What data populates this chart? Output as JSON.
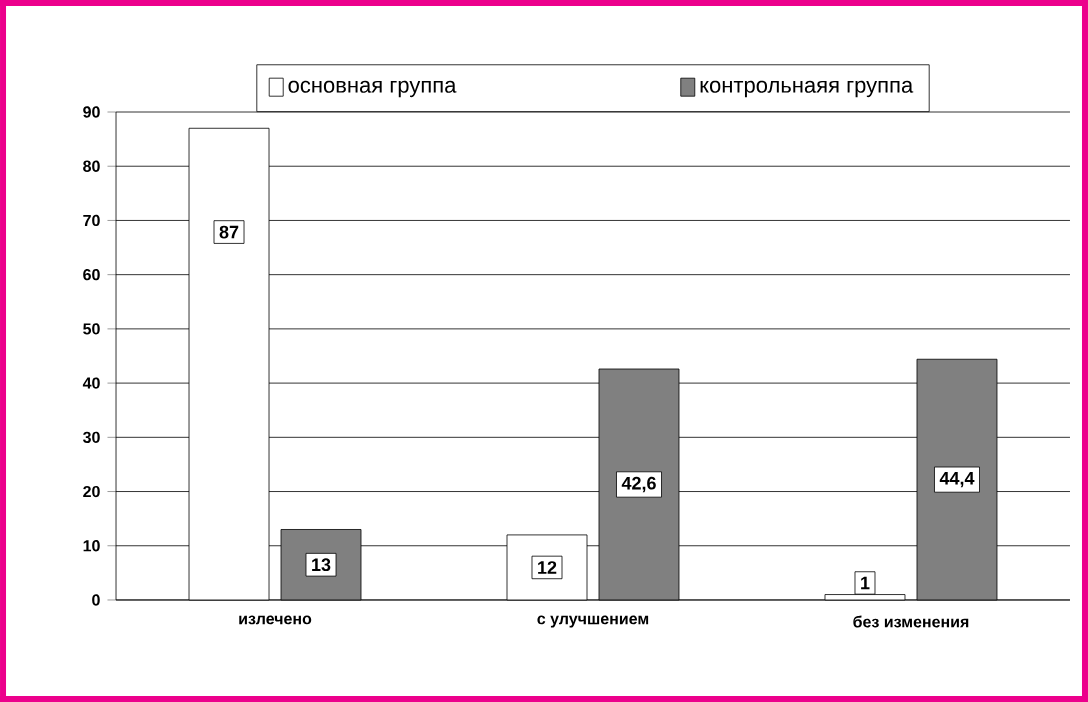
{
  "chart_data": {
    "type": "bar",
    "categories": [
      "излечено",
      "с улучшением",
      "без изменения"
    ],
    "series": [
      {
        "name": "основная группа",
        "color": "#ffffff",
        "values": [
          87,
          12,
          1
        ],
        "value_labels": [
          "87",
          "12",
          "1"
        ]
      },
      {
        "name": "контрольнаяя группа",
        "color": "#808080",
        "values": [
          13,
          42.6,
          44.4
        ],
        "value_labels": [
          "13",
          "42,6",
          "44,4"
        ]
      }
    ],
    "ylim": [
      0,
      90
    ],
    "yticks": [
      0,
      10,
      20,
      30,
      40,
      50,
      60,
      70,
      80,
      90
    ],
    "grid": "y",
    "legend": "top"
  }
}
